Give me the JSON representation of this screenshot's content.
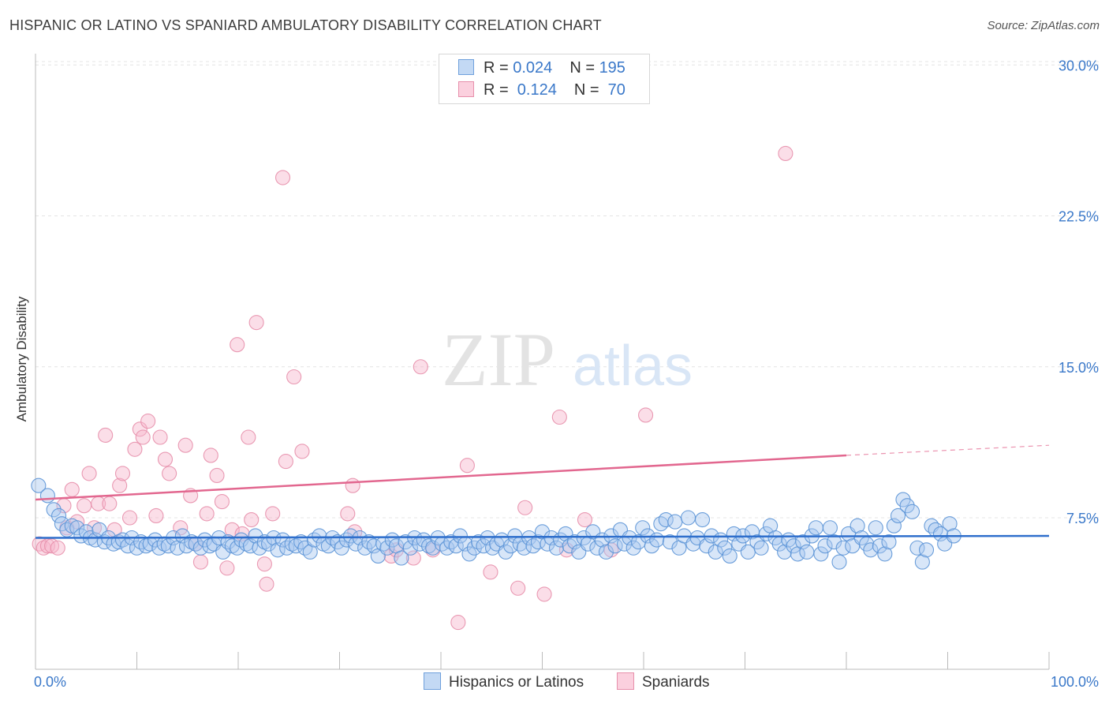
{
  "title": "HISPANIC OR LATINO VS SPANIARD AMBULATORY DISABILITY CORRELATION CHART",
  "source": "Source: ZipAtlas.com",
  "watermark": {
    "zip": "ZIP",
    "atlas": "atlas"
  },
  "legend_top": {
    "rows": [
      {
        "r_label": "R = ",
        "r_value": "0.024",
        "n_label": "N = ",
        "n_value": "195",
        "color": "#a8c8f0",
        "stroke": "#6fa0dc"
      },
      {
        "r_label": "R = ",
        "r_value": " 0.124",
        "n_label": "N = ",
        "n_value": " 70",
        "color": "#f7b6cb",
        "stroke": "#e78fab"
      }
    ]
  },
  "chart_data": {
    "type": "scatter",
    "title": "HISPANIC OR LATINO VS SPANIARD AMBULATORY DISABILITY CORRELATION CHART",
    "xlabel": "",
    "ylabel": "Ambulatory Disability",
    "xlim": [
      0,
      100
    ],
    "ylim": [
      0,
      30
    ],
    "x_tick_labels": [
      "0.0%",
      "100.0%"
    ],
    "y_ticks": [
      7.5,
      15.0,
      22.5,
      30.0
    ],
    "y_tick_labels": [
      "7.5%",
      "15.0%",
      "22.5%",
      "30.0%"
    ],
    "grid": "horizontal dashed",
    "legend_placement": "top-center",
    "series": [
      {
        "name": "Hispanics or Latinos",
        "color": "#a8c8f0",
        "stroke": "#5b93d6",
        "trend": {
          "x": [
            0,
            100
          ],
          "y": [
            6.5,
            6.6
          ],
          "color": "#2f6fcc"
        },
        "points": [
          [
            0.3,
            9.1
          ],
          [
            1.2,
            8.6
          ],
          [
            1.8,
            7.9
          ],
          [
            2.3,
            7.6
          ],
          [
            2.6,
            7.2
          ],
          [
            3.1,
            6.9
          ],
          [
            3.6,
            7.1
          ],
          [
            4.1,
            7.0
          ],
          [
            4.5,
            6.6
          ],
          [
            5.0,
            6.8
          ],
          [
            5.4,
            6.5
          ],
          [
            5.9,
            6.4
          ],
          [
            6.3,
            6.9
          ],
          [
            6.8,
            6.3
          ],
          [
            7.2,
            6.5
          ],
          [
            7.7,
            6.2
          ],
          [
            8.2,
            6.3
          ],
          [
            8.6,
            6.4
          ],
          [
            9.1,
            6.1
          ],
          [
            9.5,
            6.5
          ],
          [
            10.0,
            6.0
          ],
          [
            10.4,
            6.3
          ],
          [
            10.9,
            6.1
          ],
          [
            11.3,
            6.2
          ],
          [
            11.8,
            6.4
          ],
          [
            12.2,
            6.0
          ],
          [
            12.7,
            6.2
          ],
          [
            13.1,
            6.1
          ],
          [
            13.6,
            6.5
          ],
          [
            14.0,
            6.0
          ],
          [
            14.5,
            6.6
          ],
          [
            14.9,
            6.1
          ],
          [
            15.4,
            6.3
          ],
          [
            15.8,
            6.2
          ],
          [
            16.3,
            6.0
          ],
          [
            16.7,
            6.4
          ],
          [
            17.2,
            6.1
          ],
          [
            17.6,
            6.2
          ],
          [
            18.1,
            6.5
          ],
          [
            18.5,
            5.8
          ],
          [
            19.0,
            6.3
          ],
          [
            19.4,
            6.1
          ],
          [
            19.9,
            6.0
          ],
          [
            20.3,
            6.4
          ],
          [
            20.8,
            6.2
          ],
          [
            21.2,
            6.1
          ],
          [
            21.7,
            6.6
          ],
          [
            22.1,
            6.0
          ],
          [
            22.6,
            6.3
          ],
          [
            23.0,
            6.2
          ],
          [
            23.5,
            6.5
          ],
          [
            23.9,
            5.9
          ],
          [
            24.4,
            6.4
          ],
          [
            24.8,
            6.0
          ],
          [
            25.3,
            6.2
          ],
          [
            25.7,
            6.1
          ],
          [
            26.2,
            6.3
          ],
          [
            26.6,
            6.0
          ],
          [
            27.1,
            5.8
          ],
          [
            27.5,
            6.4
          ],
          [
            28.0,
            6.6
          ],
          [
            28.4,
            6.2
          ],
          [
            28.9,
            6.1
          ],
          [
            29.3,
            6.5
          ],
          [
            29.8,
            6.3
          ],
          [
            30.2,
            6.0
          ],
          [
            30.7,
            6.4
          ],
          [
            31.1,
            6.6
          ],
          [
            31.6,
            6.2
          ],
          [
            32.0,
            6.5
          ],
          [
            32.5,
            6.0
          ],
          [
            32.9,
            6.3
          ],
          [
            33.4,
            6.1
          ],
          [
            33.8,
            5.6
          ],
          [
            34.3,
            6.2
          ],
          [
            34.7,
            6.0
          ],
          [
            35.2,
            6.4
          ],
          [
            35.6,
            6.1
          ],
          [
            36.1,
            5.5
          ],
          [
            36.5,
            6.3
          ],
          [
            37.0,
            6.0
          ],
          [
            37.4,
            6.5
          ],
          [
            37.9,
            6.2
          ],
          [
            38.3,
            6.4
          ],
          [
            38.8,
            6.1
          ],
          [
            39.2,
            6.0
          ],
          [
            39.7,
            6.5
          ],
          [
            40.1,
            6.2
          ],
          [
            40.6,
            6.0
          ],
          [
            41.0,
            6.3
          ],
          [
            41.5,
            6.1
          ],
          [
            41.9,
            6.6
          ],
          [
            42.4,
            6.2
          ],
          [
            42.8,
            5.7
          ],
          [
            43.3,
            6.0
          ],
          [
            43.7,
            6.3
          ],
          [
            44.2,
            6.1
          ],
          [
            44.6,
            6.5
          ],
          [
            45.1,
            6.0
          ],
          [
            45.5,
            6.2
          ],
          [
            46.0,
            6.4
          ],
          [
            46.4,
            5.8
          ],
          [
            46.9,
            6.1
          ],
          [
            47.3,
            6.6
          ],
          [
            47.8,
            6.2
          ],
          [
            48.2,
            6.0
          ],
          [
            48.7,
            6.5
          ],
          [
            49.1,
            6.1
          ],
          [
            49.6,
            6.3
          ],
          [
            50.0,
            6.8
          ],
          [
            50.5,
            6.2
          ],
          [
            50.9,
            6.5
          ],
          [
            51.4,
            6.0
          ],
          [
            51.8,
            6.4
          ],
          [
            52.3,
            6.7
          ],
          [
            52.7,
            6.1
          ],
          [
            53.2,
            6.3
          ],
          [
            53.6,
            5.8
          ],
          [
            54.1,
            6.5
          ],
          [
            54.5,
            6.2
          ],
          [
            55.0,
            6.8
          ],
          [
            55.4,
            6.0
          ],
          [
            55.9,
            6.4
          ],
          [
            56.3,
            5.8
          ],
          [
            56.8,
            6.6
          ],
          [
            57.2,
            6.1
          ],
          [
            57.7,
            6.9
          ],
          [
            58.1,
            6.2
          ],
          [
            58.6,
            6.5
          ],
          [
            59.0,
            6.0
          ],
          [
            59.5,
            6.3
          ],
          [
            59.9,
            7.0
          ],
          [
            60.4,
            6.6
          ],
          [
            60.8,
            6.1
          ],
          [
            61.3,
            6.4
          ],
          [
            61.7,
            7.2
          ],
          [
            62.2,
            7.4
          ],
          [
            62.6,
            6.3
          ],
          [
            63.1,
            7.3
          ],
          [
            63.5,
            6.0
          ],
          [
            64.0,
            6.6
          ],
          [
            64.4,
            7.5
          ],
          [
            64.9,
            6.2
          ],
          [
            65.3,
            6.5
          ],
          [
            65.8,
            7.4
          ],
          [
            66.2,
            6.1
          ],
          [
            66.7,
            6.6
          ],
          [
            67.1,
            5.8
          ],
          [
            67.6,
            6.4
          ],
          [
            68.0,
            6.0
          ],
          [
            68.5,
            5.6
          ],
          [
            68.9,
            6.7
          ],
          [
            69.4,
            6.2
          ],
          [
            69.8,
            6.6
          ],
          [
            70.3,
            5.8
          ],
          [
            70.7,
            6.8
          ],
          [
            71.2,
            6.3
          ],
          [
            71.6,
            6.0
          ],
          [
            72.1,
            6.7
          ],
          [
            72.5,
            7.1
          ],
          [
            73.0,
            6.5
          ],
          [
            73.4,
            6.2
          ],
          [
            73.9,
            5.8
          ],
          [
            74.3,
            6.4
          ],
          [
            74.8,
            6.1
          ],
          [
            75.2,
            5.7
          ],
          [
            75.7,
            6.3
          ],
          [
            76.1,
            5.8
          ],
          [
            76.6,
            6.6
          ],
          [
            77.0,
            7.0
          ],
          [
            77.5,
            5.7
          ],
          [
            77.9,
            6.1
          ],
          [
            78.4,
            7.0
          ],
          [
            78.8,
            6.3
          ],
          [
            79.3,
            5.3
          ],
          [
            79.7,
            6.0
          ],
          [
            80.2,
            6.7
          ],
          [
            80.6,
            6.1
          ],
          [
            81.1,
            7.1
          ],
          [
            81.5,
            6.5
          ],
          [
            82.0,
            6.2
          ],
          [
            82.4,
            5.9
          ],
          [
            82.9,
            7.0
          ],
          [
            83.3,
            6.1
          ],
          [
            83.8,
            5.7
          ],
          [
            84.2,
            6.3
          ],
          [
            84.7,
            7.1
          ],
          [
            85.1,
            7.6
          ],
          [
            85.6,
            8.4
          ],
          [
            86.0,
            8.1
          ],
          [
            86.5,
            7.8
          ],
          [
            87.0,
            6.0
          ],
          [
            87.5,
            5.3
          ],
          [
            87.9,
            5.9
          ],
          [
            88.4,
            7.1
          ],
          [
            88.8,
            6.9
          ],
          [
            89.3,
            6.7
          ],
          [
            89.7,
            6.2
          ],
          [
            90.2,
            7.2
          ],
          [
            90.6,
            6.6
          ]
        ]
      },
      {
        "name": "Spaniards",
        "color": "#f7b6cb",
        "stroke": "#e78fab",
        "trend": {
          "x": [
            0,
            80
          ],
          "y": [
            8.4,
            10.6
          ],
          "dash_to": [
            100,
            11.1
          ],
          "color": "#e2678f"
        },
        "points": [
          [
            0.4,
            6.2
          ],
          [
            0.8,
            6.0
          ],
          [
            1.2,
            6.1
          ],
          [
            1.6,
            6.1
          ],
          [
            2.2,
            6.0
          ],
          [
            2.8,
            8.1
          ],
          [
            3.1,
            7.0
          ],
          [
            3.6,
            8.9
          ],
          [
            4.1,
            7.3
          ],
          [
            4.8,
            8.1
          ],
          [
            5.3,
            9.7
          ],
          [
            5.8,
            7.0
          ],
          [
            6.2,
            8.2
          ],
          [
            6.9,
            11.6
          ],
          [
            7.3,
            8.2
          ],
          [
            7.8,
            6.9
          ],
          [
            8.3,
            9.1
          ],
          [
            8.6,
            9.7
          ],
          [
            9.3,
            7.5
          ],
          [
            9.8,
            10.9
          ],
          [
            10.3,
            11.9
          ],
          [
            10.6,
            11.5
          ],
          [
            11.1,
            12.3
          ],
          [
            11.9,
            7.6
          ],
          [
            12.3,
            11.5
          ],
          [
            12.8,
            10.4
          ],
          [
            13.2,
            9.7
          ],
          [
            14.3,
            7.0
          ],
          [
            14.8,
            11.1
          ],
          [
            15.3,
            8.6
          ],
          [
            15.8,
            6.2
          ],
          [
            16.3,
            5.3
          ],
          [
            16.9,
            7.7
          ],
          [
            17.3,
            10.6
          ],
          [
            17.9,
            9.6
          ],
          [
            18.4,
            8.3
          ],
          [
            18.9,
            5.0
          ],
          [
            19.4,
            6.9
          ],
          [
            19.9,
            16.1
          ],
          [
            20.4,
            6.7
          ],
          [
            21.0,
            11.5
          ],
          [
            21.3,
            7.4
          ],
          [
            21.8,
            17.2
          ],
          [
            22.6,
            5.2
          ],
          [
            22.8,
            4.2
          ],
          [
            23.4,
            7.7
          ],
          [
            24.4,
            24.4
          ],
          [
            24.7,
            10.3
          ],
          [
            25.5,
            14.5
          ],
          [
            26.3,
            10.8
          ],
          [
            30.8,
            7.7
          ],
          [
            31.3,
            9.1
          ],
          [
            31.5,
            6.8
          ],
          [
            35.1,
            5.6
          ],
          [
            35.6,
            5.9
          ],
          [
            37.3,
            5.5
          ],
          [
            38.0,
            15.0
          ],
          [
            39.2,
            5.9
          ],
          [
            41.7,
            2.3
          ],
          [
            42.6,
            10.1
          ],
          [
            44.9,
            4.8
          ],
          [
            47.6,
            4.0
          ],
          [
            48.3,
            8.0
          ],
          [
            50.2,
            3.7
          ],
          [
            51.7,
            12.5
          ],
          [
            52.4,
            5.9
          ],
          [
            54.2,
            7.4
          ],
          [
            56.8,
            5.9
          ],
          [
            60.2,
            12.6
          ],
          [
            74.0,
            25.6
          ]
        ]
      }
    ]
  }
}
